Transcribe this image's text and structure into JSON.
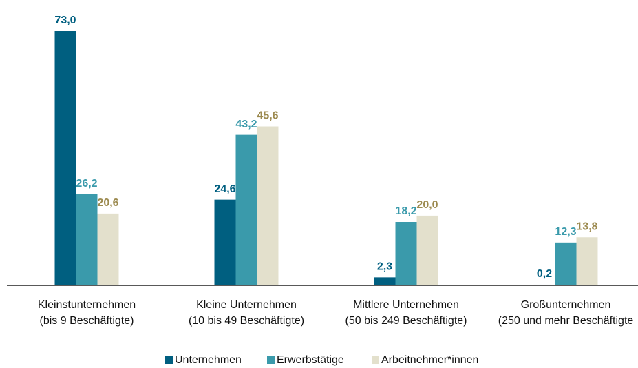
{
  "chart_data": {
    "type": "bar",
    "categories": [
      [
        "Kleinstunternehmen",
        "(bis 9 Beschäftigte)"
      ],
      [
        "Kleine Unternehmen",
        "(10 bis 49 Beschäftigte)"
      ],
      [
        "Mittlere Unternehmen",
        "(50 bis 249 Beschäftigte)"
      ],
      [
        "Großunternehmen",
        "(250 und mehr Beschäftigte"
      ]
    ],
    "series": [
      {
        "name": "Unternehmen",
        "color": "#005f80",
        "label_color": "#005f80",
        "values": [
          73.0,
          24.6,
          2.3,
          0.2
        ],
        "value_labels": [
          "73,0",
          "24,6",
          "2,3",
          "0,2"
        ]
      },
      {
        "name": "Erwerbstätige",
        "color": "#3a9aab",
        "label_color": "#3a9aab",
        "values": [
          26.2,
          43.2,
          18.2,
          12.3
        ],
        "value_labels": [
          "26,2",
          "43,2",
          "18,2",
          "12,3"
        ]
      },
      {
        "name": "Arbeitnehmer*innen",
        "color": "#e3e0cc",
        "label_color": "#9c8a4f",
        "values": [
          20.6,
          45.6,
          20.0,
          13.8
        ],
        "value_labels": [
          "20,6",
          "45,6",
          "20,0",
          "13,8"
        ]
      }
    ],
    "ylim": [
      0,
      73
    ],
    "legend": "bottom"
  }
}
